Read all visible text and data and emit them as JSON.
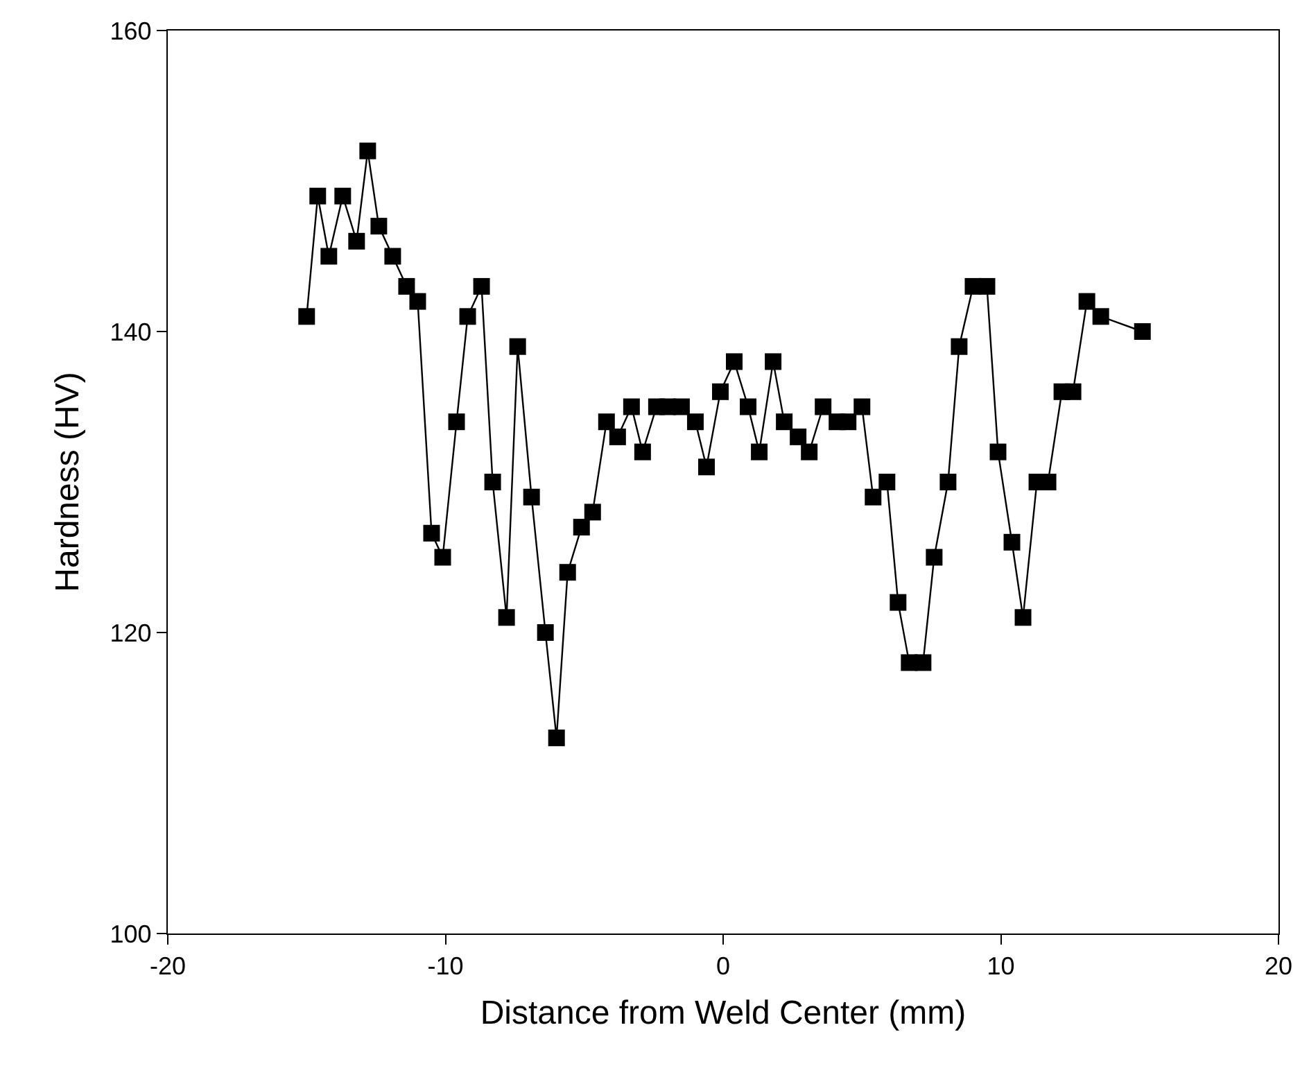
{
  "chart_data": {
    "type": "line",
    "xlabel": "Distance from Weld Center (mm)",
    "ylabel": "Hardness (HV)",
    "x": [
      -15.0,
      -14.6,
      -14.2,
      -13.7,
      -13.2,
      -12.8,
      -12.4,
      -11.9,
      -11.4,
      -11.0,
      -10.5,
      -10.1,
      -9.6,
      -9.2,
      -8.7,
      -8.3,
      -7.8,
      -7.4,
      -6.9,
      -6.4,
      -6.0,
      -5.6,
      -5.1,
      -4.7,
      -4.2,
      -3.8,
      -3.3,
      -2.9,
      -2.4,
      -2.0,
      -1.5,
      -1.0,
      -0.6,
      -0.1,
      0.4,
      0.9,
      1.3,
      1.8,
      2.2,
      2.7,
      3.1,
      3.6,
      4.1,
      4.5,
      5.0,
      5.4,
      5.9,
      6.3,
      6.7,
      7.2,
      7.6,
      8.1,
      8.5,
      9.0,
      9.5,
      9.9,
      10.4,
      10.8,
      11.3,
      11.7,
      12.2,
      12.6,
      13.1,
      13.6,
      15.1
    ],
    "series": [
      {
        "color": "#000000",
        "values": [
          141,
          149,
          145,
          149,
          146,
          152,
          147,
          145,
          143,
          142,
          126.6,
          125,
          134,
          141,
          143,
          130,
          121,
          139,
          129,
          120,
          113,
          124,
          127,
          128,
          134,
          133,
          135,
          132,
          135,
          135,
          135,
          134,
          131,
          136,
          138,
          135,
          132,
          138,
          134,
          133,
          132,
          135,
          134,
          134,
          135,
          129,
          130,
          122,
          118,
          118,
          125,
          130,
          139,
          143,
          143,
          132,
          126,
          121,
          130,
          130,
          136,
          136,
          142,
          141,
          140
        ]
      }
    ],
    "xlim": [
      -20,
      20
    ],
    "xticks": [
      -20,
      -10,
      0,
      10,
      20
    ],
    "ylim": [
      100,
      160
    ],
    "yticks": [
      100,
      120,
      140,
      160
    ],
    "legend": false,
    "marker": "square",
    "line_style": "solid"
  }
}
